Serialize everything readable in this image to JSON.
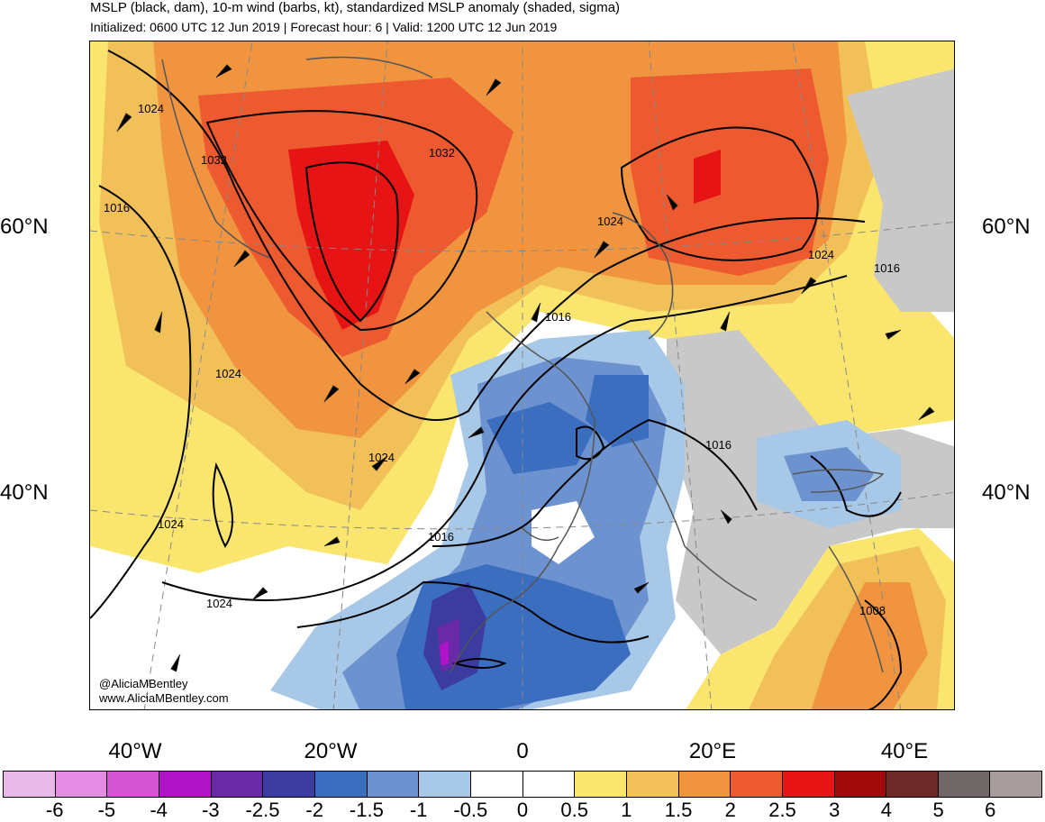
{
  "title": {
    "line1": "MSLP (black, dam), 10-m wind (barbs, kt), standardized MSLP anomaly (shaded, sigma)",
    "line2": "Initialized: 0600 UTC 12 Jun 2019 | Forecast hour: 6 | Valid: 1200 UTC 12 Jun 2019"
  },
  "map": {
    "lat_labels": [
      "60°N",
      "40°N"
    ],
    "lon_labels": [
      "40°W",
      "20°W",
      "0",
      "20°E",
      "40°E"
    ],
    "contour_labels": [
      "1024",
      "1032",
      "1016",
      "1032",
      "1024",
      "1024",
      "1016",
      "1016",
      "1024",
      "1024",
      "1024",
      "1016",
      "1016",
      "1024",
      "1008"
    ],
    "credit": [
      "@AliciaMBentley",
      "www.AliciaMBentley.com"
    ]
  },
  "colorbar": {
    "labels": [
      "-6",
      "-5",
      "-4",
      "-3",
      "-2.5",
      "-2",
      "-1.5",
      "-1",
      "-0.5",
      "0",
      "0.5",
      "1",
      "1.5",
      "2",
      "2.5",
      "3",
      "4",
      "5",
      "6"
    ],
    "colors": [
      "#e8b8e8",
      "#e48be4",
      "#d454d4",
      "#b014c8",
      "#6a2aa8",
      "#3c3ca0",
      "#3c6ec0",
      "#6c92d0",
      "#a8c8e8",
      "#ffffff",
      "#ffffff",
      "#fae66e",
      "#f2c058",
      "#f09440",
      "#ee5a30",
      "#e61414",
      "#a00a0a",
      "#6e2a28",
      "#706868",
      "#a69c9c"
    ]
  }
}
